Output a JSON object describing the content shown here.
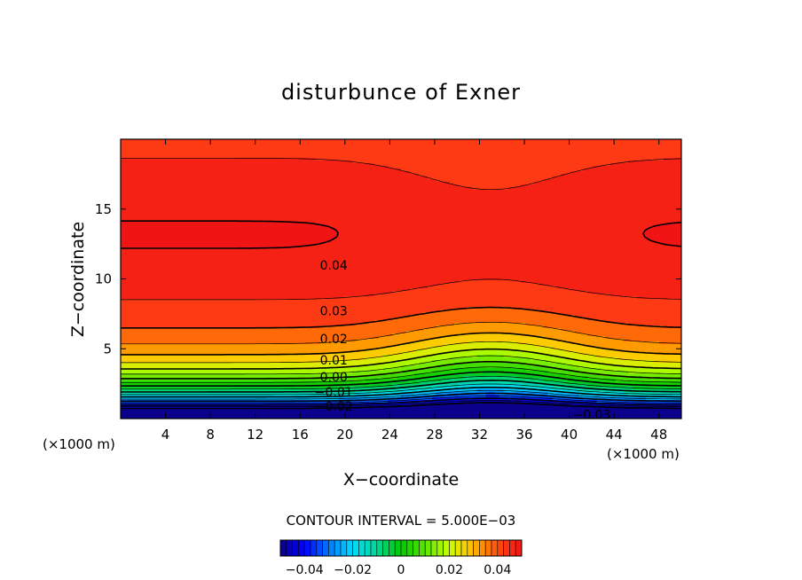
{
  "chart_data": {
    "type": "heatmap",
    "title": "disturbunce of Exner",
    "xlabel": "X−coordinate",
    "ylabel": "Z−coordinate",
    "x_unit": "(×1000 m)",
    "y_unit": "(×1000 m)",
    "xlim": [
      0,
      50
    ],
    "ylim": [
      0,
      20
    ],
    "x_ticks": [
      "4",
      "8",
      "12",
      "16",
      "20",
      "24",
      "28",
      "32",
      "36",
      "40",
      "44",
      "48"
    ],
    "y_ticks": [
      "5",
      "10",
      "15"
    ],
    "contour_interval_text": "CONTOUR INTERVAL =  5.000E−03",
    "contour_interval": 0.005,
    "value_range": [
      -0.05,
      0.05
    ],
    "contour_labels": [
      {
        "text": "0.04",
        "x": 19,
        "z": 11.0
      },
      {
        "text": "0.03",
        "x": 19,
        "z": 7.7
      },
      {
        "text": "0.02",
        "x": 19,
        "z": 5.7
      },
      {
        "text": "0.01",
        "x": 19,
        "z": 4.2
      },
      {
        "text": "0.00",
        "x": 19,
        "z": 3.0
      },
      {
        "text": "−0.01",
        "x": 19,
        "z": 1.9
      },
      {
        "text": "−0.02",
        "x": 19,
        "z": 0.9
      },
      {
        "text": "−0.03",
        "x": 42,
        "z": 0.3
      }
    ],
    "colorbar": {
      "tick_labels": [
        "−0.04",
        "−0.02",
        "0",
        "0.02",
        "0.04"
      ],
      "tick_values": [
        -0.04,
        -0.02,
        0,
        0.02,
        0.04
      ]
    }
  }
}
